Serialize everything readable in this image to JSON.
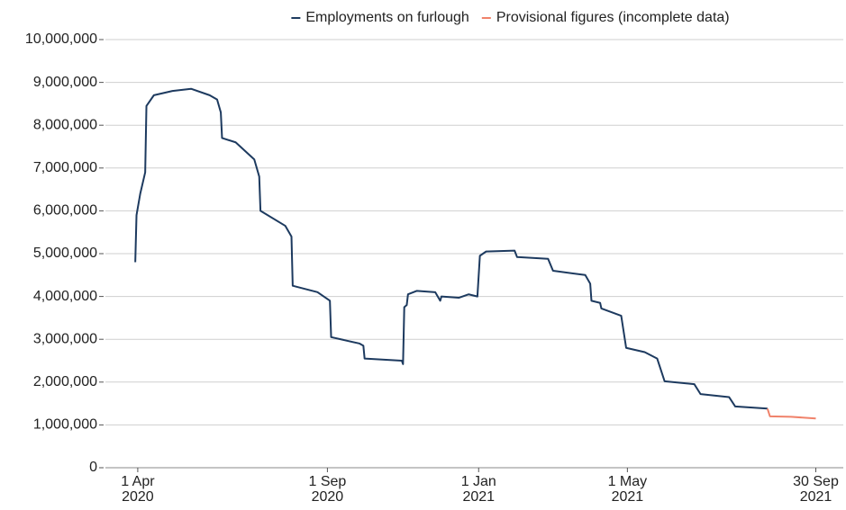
{
  "chart_data": {
    "type": "line",
    "x": [
      "2020-03-30",
      "2020-03-31",
      "2020-04-03",
      "2020-04-07",
      "2020-04-08",
      "2020-04-14",
      "2020-04-29",
      "2020-05-14",
      "2020-05-29",
      "2020-06-04",
      "2020-06-07",
      "2020-06-08",
      "2020-06-19",
      "2020-07-04",
      "2020-07-08",
      "2020-07-09",
      "2020-07-29",
      "2020-08-03",
      "2020-08-04",
      "2020-08-24",
      "2020-09-03",
      "2020-09-04",
      "2020-09-27",
      "2020-09-30",
      "2020-10-01",
      "2020-10-31",
      "2020-11-01",
      "2020-11-02",
      "2020-11-04",
      "2020-11-05",
      "2020-11-12",
      "2020-11-27",
      "2020-12-01",
      "2020-12-02",
      "2020-12-16",
      "2020-12-24",
      "2020-12-31",
      "2021-01-02",
      "2021-01-07",
      "2021-01-30",
      "2021-02-01",
      "2021-02-26",
      "2021-03-02",
      "2021-03-28",
      "2021-04-01",
      "2021-04-02",
      "2021-04-09",
      "2021-04-10",
      "2021-04-26",
      "2021-04-30",
      "2021-05-15",
      "2021-05-25",
      "2021-05-31",
      "2021-06-24",
      "2021-06-29",
      "2021-07-22",
      "2021-07-27",
      "2021-08-22",
      "2021-08-24",
      "2021-09-10",
      "2021-09-30"
    ],
    "series": [
      {
        "name": "Employments on furlough",
        "color": "#1d3a5f",
        "values": [
          4800000,
          5900000,
          6400000,
          6900000,
          8450000,
          8700000,
          8800000,
          8850000,
          8700000,
          8600000,
          8300000,
          7700000,
          7600000,
          7200000,
          6800000,
          6000000,
          5650000,
          5400000,
          4250000,
          4100000,
          3900000,
          3050000,
          2900000,
          2850000,
          2550000,
          2500000,
          2420000,
          3750000,
          3800000,
          4050000,
          4130000,
          4100000,
          3900000,
          4000000,
          3970000,
          4050000,
          4000000,
          4950000,
          5050000,
          5070000,
          4920000,
          4880000,
          4600000,
          4500000,
          4300000,
          3900000,
          3850000,
          3720000,
          3550000,
          2800000,
          2700000,
          2550000,
          2020000,
          1950000,
          1720000,
          1650000,
          1430000,
          1380000,
          null,
          null,
          null
        ]
      },
      {
        "name": "Provisional figures (incomplete data)",
        "color": "#f0826a",
        "values": [
          null,
          null,
          null,
          null,
          null,
          null,
          null,
          null,
          null,
          null,
          null,
          null,
          null,
          null,
          null,
          null,
          null,
          null,
          null,
          null,
          null,
          null,
          null,
          null,
          null,
          null,
          null,
          null,
          null,
          null,
          null,
          null,
          null,
          null,
          null,
          null,
          null,
          null,
          null,
          null,
          null,
          null,
          null,
          null,
          null,
          null,
          null,
          null,
          null,
          null,
          null,
          null,
          null,
          null,
          null,
          null,
          null,
          1380000,
          1200000,
          1190000,
          1150000
        ]
      }
    ],
    "xlim": [
      "2020-03-03",
      "2021-10-04"
    ],
    "xticks": [
      {
        "value": "2020-04-01",
        "label": [
          "1 Apr",
          "2020"
        ]
      },
      {
        "value": "2020-09-01",
        "label": [
          "1 Sep",
          "2020"
        ]
      },
      {
        "value": "2021-01-01",
        "label": [
          "1 Jan",
          "2021"
        ]
      },
      {
        "value": "2021-05-01",
        "label": [
          "1 May",
          "2021"
        ]
      },
      {
        "value": "2021-09-30",
        "label": [
          "30 Sep",
          "2021"
        ]
      }
    ],
    "ylim": [
      0,
      10000000
    ],
    "yticks": [
      0,
      {
        "value": 1000000,
        "label": "1,000,000"
      },
      {
        "value": 2000000,
        "label": "2,000,000"
      },
      {
        "value": 3000000,
        "label": "3,000,000"
      },
      {
        "value": 4000000,
        "label": "4,000,000"
      },
      {
        "value": 5000000,
        "label": "5,000,000"
      },
      {
        "value": 6000000,
        "label": "6,000,000"
      },
      {
        "value": 7000000,
        "label": "7,000,000"
      },
      {
        "value": 8000000,
        "label": "8,000,000"
      },
      {
        "value": 9000000,
        "label": "9,000,000"
      },
      {
        "value": 10000000,
        "label": "10,000,000"
      }
    ],
    "grid": true,
    "legend": "top"
  }
}
